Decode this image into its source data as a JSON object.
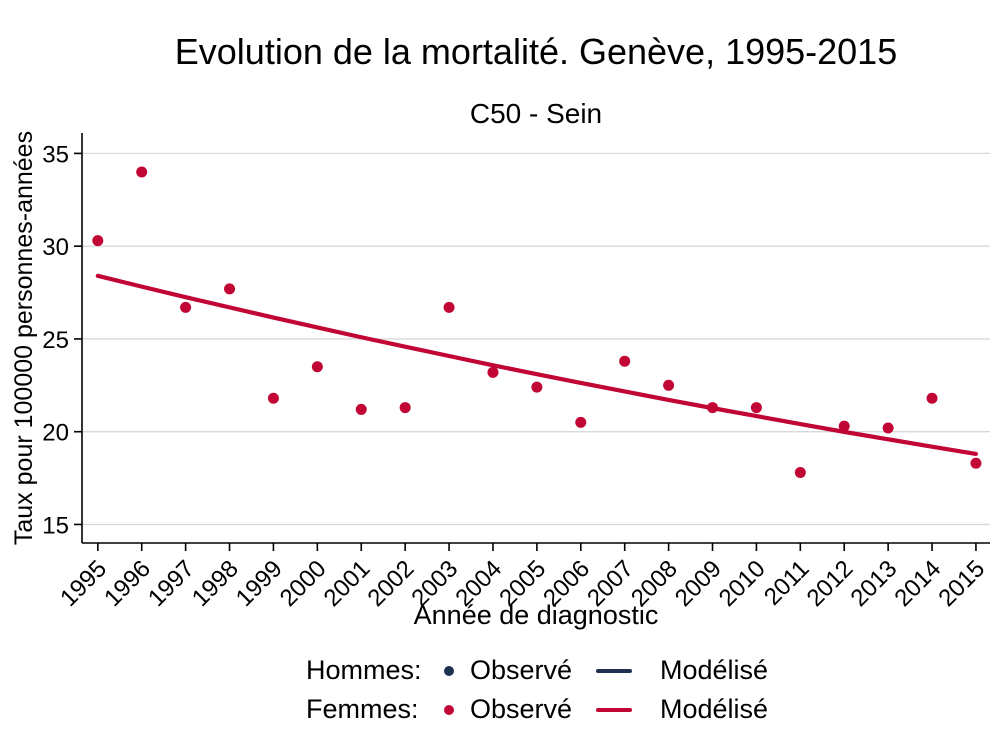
{
  "title": "Evolution de la mortalité. Genève, 1995-2015",
  "subtitle": "C50 - Sein",
  "axes": {
    "xlabel": "Année de diagnostic",
    "ylabel": "Taux pour 100000 personnes-années",
    "yticks": [
      15,
      20,
      25,
      30,
      35
    ],
    "x_range": [
      1994.64,
      2015.32
    ],
    "y_range": [
      14.0,
      36.1
    ],
    "grid": true,
    "legend_position": "bottom"
  },
  "chart_data": {
    "type": "scatter",
    "x": [
      1995,
      1996,
      1997,
      1998,
      1999,
      2000,
      2001,
      2002,
      2003,
      2004,
      2005,
      2006,
      2007,
      2008,
      2009,
      2010,
      2011,
      2012,
      2013,
      2014,
      2015
    ],
    "series": [
      {
        "name": "Femmes observé",
        "style": "points",
        "group": "femmes",
        "values": [
          30.3,
          34.0,
          26.7,
          27.7,
          21.8,
          23.5,
          21.2,
          21.3,
          26.7,
          23.2,
          22.4,
          20.5,
          23.8,
          22.5,
          21.3,
          21.3,
          17.8,
          20.3,
          20.2,
          21.8,
          18.3
        ]
      },
      {
        "name": "Femmes modélisé",
        "style": "line",
        "group": "femmes",
        "values": [
          28.4,
          27.82,
          27.25,
          26.7,
          26.15,
          25.62,
          25.09,
          24.58,
          24.08,
          23.58,
          23.1,
          22.63,
          22.17,
          21.71,
          21.27,
          20.84,
          20.41,
          19.99,
          19.59,
          19.19,
          18.8
        ]
      },
      {
        "name": "Hommes observé",
        "style": "points",
        "group": "hommes",
        "values": []
      },
      {
        "name": "Hommes modélisé",
        "style": "line",
        "group": "hommes",
        "values": []
      }
    ]
  },
  "legend": {
    "rows": [
      {
        "group": "hommes",
        "label": "Hommes:",
        "observed": "Observé",
        "modeled": "Modélisé"
      },
      {
        "group": "femmes",
        "label": "Femmes:",
        "observed": "Observé",
        "modeled": "Modélisé"
      }
    ]
  },
  "colors": {
    "femmes": "#c10534",
    "hommes": "#1f3150",
    "grid": "#d9d9d9",
    "axis": "#000000",
    "text": "#000000",
    "background": "#ffffff"
  }
}
